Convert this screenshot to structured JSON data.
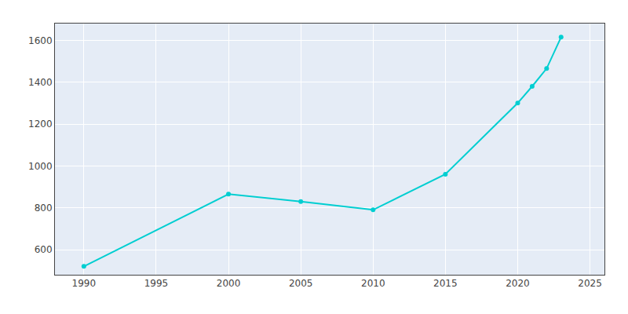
{
  "chart_data": {
    "type": "line",
    "x": [
      1990,
      2000,
      2005,
      2010,
      2015,
      2020,
      2021,
      2022,
      2023
    ],
    "values": [
      520,
      865,
      830,
      790,
      960,
      1300,
      1380,
      1465,
      1615
    ],
    "color": "#00CED1",
    "marker": "circle",
    "xlim": [
      1988,
      2026
    ],
    "ylim": [
      480,
      1680
    ],
    "xticks": [
      1990,
      1995,
      2000,
      2005,
      2010,
      2015,
      2020,
      2025
    ],
    "yticks": [
      600,
      800,
      1000,
      1200,
      1400,
      1600
    ],
    "grid": true
  }
}
